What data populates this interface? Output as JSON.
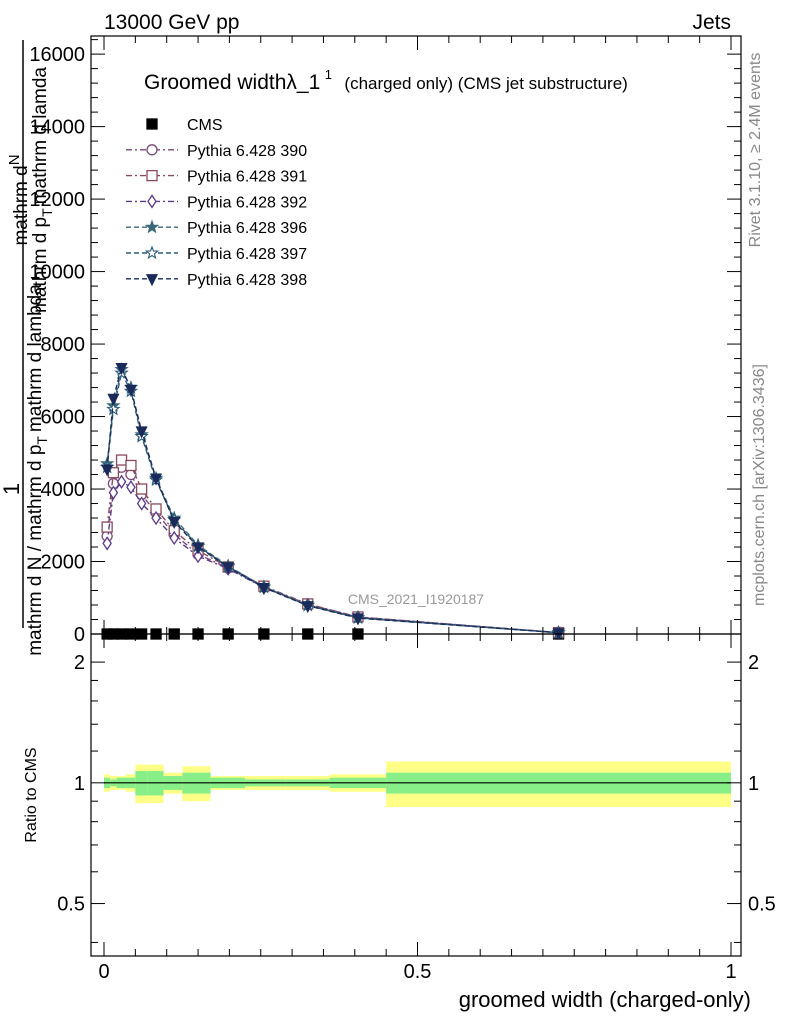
{
  "header": {
    "energy": "13000 GeV pp",
    "category": "Jets"
  },
  "side_labels": {
    "rivet": "Rivet 3.1.10, ≥ 2.4M events",
    "mcplots": "mcplots.cern.ch [arXiv:1306.3436]"
  },
  "watermark": "CMS_2021_I1920187",
  "chart_data": [
    {
      "type": "line",
      "title": "Groomed widthλ_1¹ (charged only) (CMS jet substructure)",
      "title_main": "Groomed widthλ_1",
      "title_sup": "1",
      "title_rest": "(charged only) (CMS jet substructure)",
      "ylabel": "1 / mathrm d N / mathrm d p_T mathrm d lambda",
      "ylabel_parts": {
        "one": "1",
        "numerator": "mathrm d",
        "numerator_n": "N",
        "denominator": "mathrm d N / mathrm d p",
        "denominator_sub": "T",
        "denominator_end": "mathrm d lambda",
        "numerator_p": "mathrm d p",
        "numerator_sub": "T",
        "numerator_end": "mathrm d lamda"
      },
      "xlim": [
        0,
        1
      ],
      "ylim": [
        0,
        16500
      ],
      "y_ticks": [
        0,
        2000,
        4000,
        6000,
        8000,
        10000,
        12000,
        14000,
        16000
      ],
      "y_tick_labels": [
        "0",
        "2000",
        "4000",
        "6000",
        "8000",
        "10000",
        "12000",
        "14000",
        "16000"
      ],
      "x": [
        0.005,
        0.015,
        0.028,
        0.043,
        0.06,
        0.083,
        0.112,
        0.15,
        0.198,
        0.255,
        0.325,
        0.405,
        0.725
      ],
      "series": [
        {
          "name": "CMS",
          "color": "#000000",
          "marker": "square-filled",
          "values": [
            0,
            0,
            0,
            0,
            0,
            0,
            0,
            0,
            0,
            0,
            0,
            0,
            0
          ]
        },
        {
          "name": "Pythia 6.428 390",
          "color": "#7a4a7a",
          "marker": "circle-open",
          "dash": "6,3,2,3",
          "values": [
            2700,
            4150,
            4600,
            4400,
            3850,
            3350,
            2750,
            2200,
            1820,
            1300,
            820,
            470,
            40
          ]
        },
        {
          "name": "Pythia 6.428 391",
          "color": "#8a4a5a",
          "marker": "square-open",
          "dash": "6,3,2,3",
          "values": [
            2950,
            4450,
            4800,
            4650,
            4000,
            3450,
            2850,
            2300,
            1850,
            1320,
            830,
            470,
            40
          ]
        },
        {
          "name": "Pythia 6.428 392",
          "color": "#5a3a8a",
          "marker": "diamond-open",
          "dash": "6,3,2,3",
          "values": [
            2500,
            3900,
            4200,
            4050,
            3600,
            3200,
            2650,
            2150,
            1800,
            1280,
            800,
            460,
            40
          ]
        },
        {
          "name": "Pythia 6.428 396",
          "color": "#3a6a7a",
          "marker": "star-filled",
          "dash": "5,3",
          "values": [
            4700,
            6300,
            7300,
            6800,
            5500,
            4300,
            3200,
            2450,
            1880,
            1300,
            800,
            450,
            35
          ]
        },
        {
          "name": "Pythia 6.428 397",
          "color": "#2a5a7a",
          "marker": "star-open",
          "dash": "5,3",
          "values": [
            4600,
            6200,
            7200,
            6700,
            5450,
            4250,
            3150,
            2420,
            1860,
            1290,
            790,
            445,
            35
          ]
        },
        {
          "name": "Pythia 6.428 398",
          "color": "#1a2a5a",
          "marker": "triangle-down-filled",
          "dash": "5,3",
          "values": [
            4550,
            6500,
            7350,
            6750,
            5600,
            4300,
            3100,
            2400,
            1850,
            1280,
            780,
            440,
            35
          ]
        }
      ]
    },
    {
      "type": "area",
      "ylabel": "Ratio to CMS",
      "xlabel": "groomed width (charged-only)",
      "xlim": [
        0,
        1
      ],
      "ylim": [
        0.37,
        2.35
      ],
      "y_scale": "log",
      "y_ticks": [
        0.5,
        1,
        2
      ],
      "y_tick_labels": [
        "0.5",
        "1",
        "2"
      ],
      "x_ticks": [
        0,
        0.5,
        1
      ],
      "x_tick_labels": [
        "0",
        "0.5",
        "1"
      ],
      "reference": 1,
      "bins": [
        0,
        0.01,
        0.02,
        0.035,
        0.05,
        0.07,
        0.095,
        0.125,
        0.17,
        0.225,
        0.29,
        0.36,
        0.45,
        1.0
      ],
      "band_inner": [
        0.03,
        0.02,
        0.03,
        0.03,
        0.07,
        0.07,
        0.04,
        0.06,
        0.03,
        0.02,
        0.02,
        0.03,
        0.06
      ],
      "band_outer": [
        0.05,
        0.04,
        0.04,
        0.05,
        0.11,
        0.11,
        0.06,
        0.1,
        0.04,
        0.04,
        0.04,
        0.05,
        0.13
      ],
      "inner_color": "#88ee88",
      "outer_color": "#ffff88"
    }
  ]
}
